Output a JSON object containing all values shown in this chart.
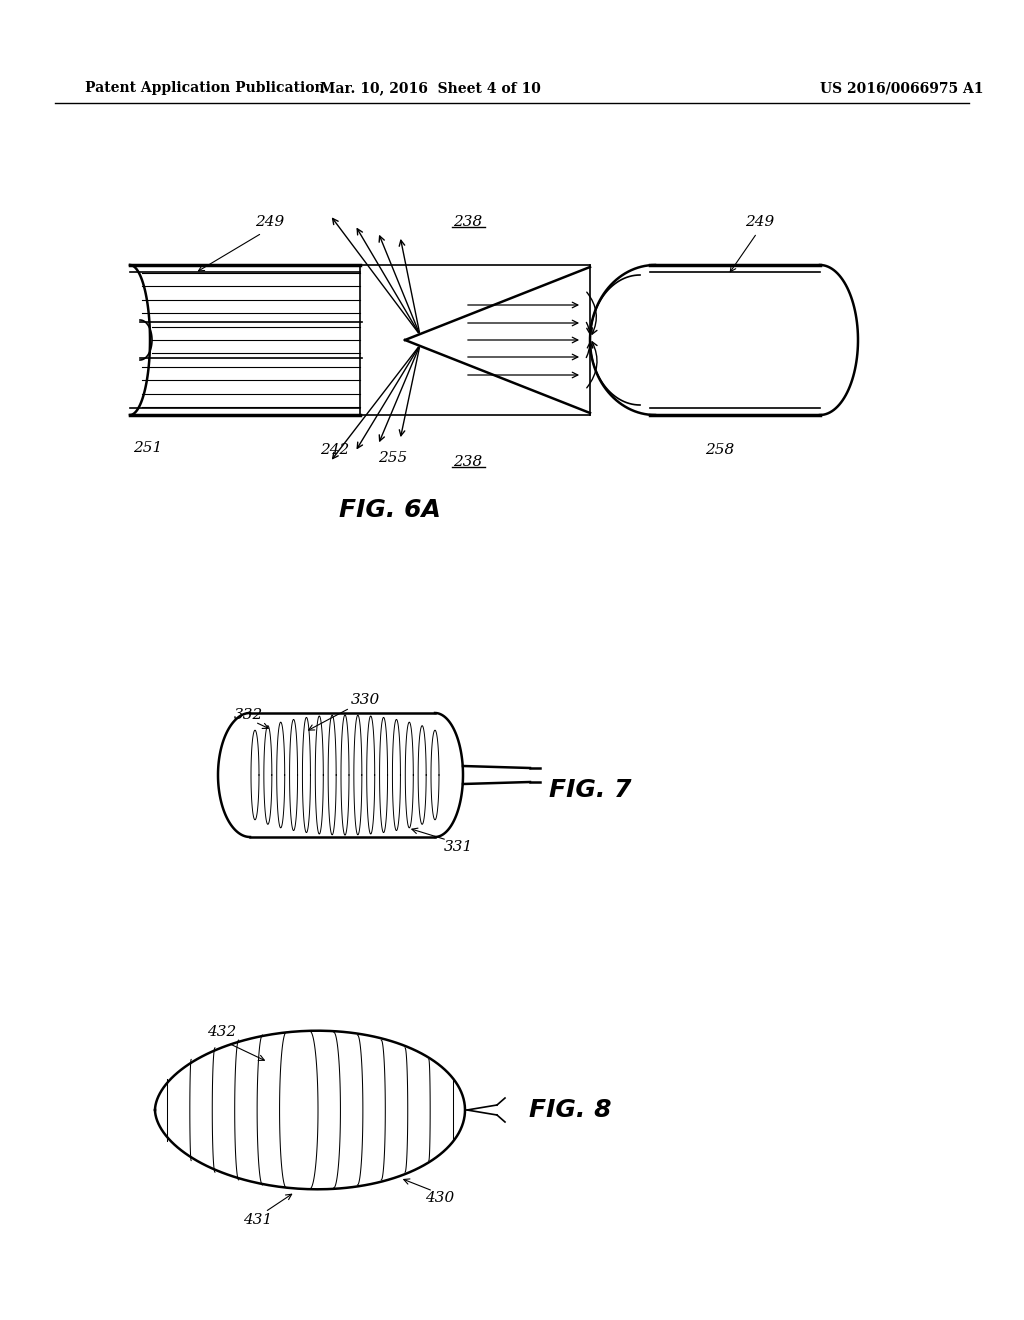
{
  "bg_color": "#ffffff",
  "text_color": "#000000",
  "line_color": "#000000",
  "header_left": "Patent Application Publication",
  "header_center": "Mar. 10, 2016  Sheet 4 of 10",
  "header_right": "US 2016/0066975 A1",
  "fig6a_label": "FIG. 6A",
  "fig7_label": "FIG. 7",
  "fig8_label": "FIG. 8",
  "labels_6a": {
    "249_left": "249",
    "249_right": "249",
    "238_top": "238",
    "238_bottom": "238",
    "251": "251",
    "242": "242",
    "255": "255",
    "258": "258"
  },
  "labels_7": {
    "330": "330",
    "332": "332",
    "331": "331"
  },
  "labels_8": {
    "432": "432",
    "430": "430",
    "431": "431"
  }
}
